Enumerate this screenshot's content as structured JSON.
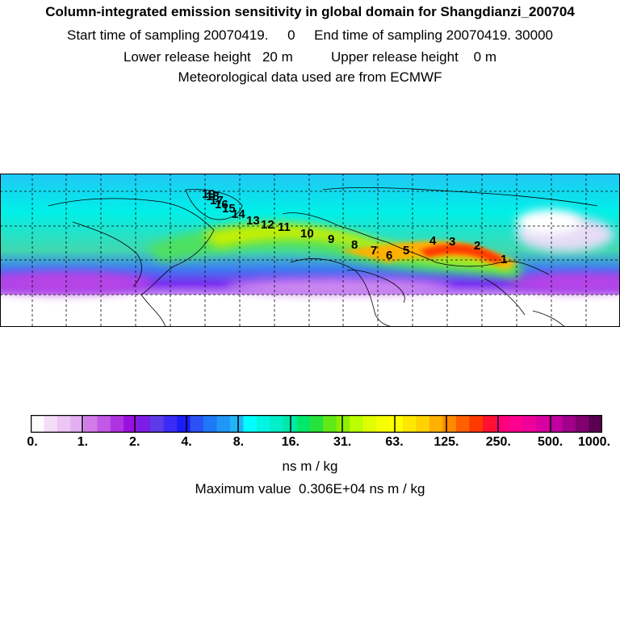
{
  "header": {
    "title": "Column-integrated emission sensitivity in global domain for Shangdianzi_200704",
    "sampling": "Start time of sampling 20070419.     0     End time of sampling 20070419. 30000",
    "release": "Lower release height   20 m          Upper release height    0 m",
    "met": "Meteorological data used are from ECMWF"
  },
  "map": {
    "trajectory_labels": [
      "1",
      "2",
      "3",
      "4",
      "5",
      "6",
      "7",
      "8",
      "9",
      "10",
      "11",
      "12",
      "13",
      "14",
      "15",
      "16",
      "17",
      "18",
      "19"
    ]
  },
  "colorbar": {
    "colors": [
      "#fdfbfd",
      "#f4ddf8",
      "#ecc6f4",
      "#e3aff1",
      "#d27ce9",
      "#c259e5",
      "#b033e1",
      "#9a10e0",
      "#7c1fe6",
      "#5f3ae9",
      "#3a2cf4",
      "#1b1df6",
      "#2a52f6",
      "#1f78f6",
      "#1f97f6",
      "#22b4f6",
      "#00ffff",
      "#00f6e3",
      "#00eec8",
      "#00e8a8",
      "#00e86b",
      "#27e23b",
      "#61e817",
      "#8ef000",
      "#bbff00",
      "#dfff00",
      "#f5ff00",
      "#ffff00",
      "#ffe800",
      "#ffd200",
      "#ffb000",
      "#ff8a00",
      "#ff6000",
      "#ff3a00",
      "#ff1030",
      "#ff007a",
      "#ff0090",
      "#f0009a",
      "#d900a0",
      "#c000a0",
      "#a0008a",
      "#800070",
      "#5a0050"
    ],
    "ticks": [
      "0.",
      "1.",
      "2.",
      "4.",
      "8.",
      "16.",
      "31.",
      "63.",
      "125.",
      "250.",
      "500.",
      "1000."
    ],
    "unit": "ns m / kg",
    "max_value": "Maximum value  0.306E+04 ns m / kg"
  }
}
